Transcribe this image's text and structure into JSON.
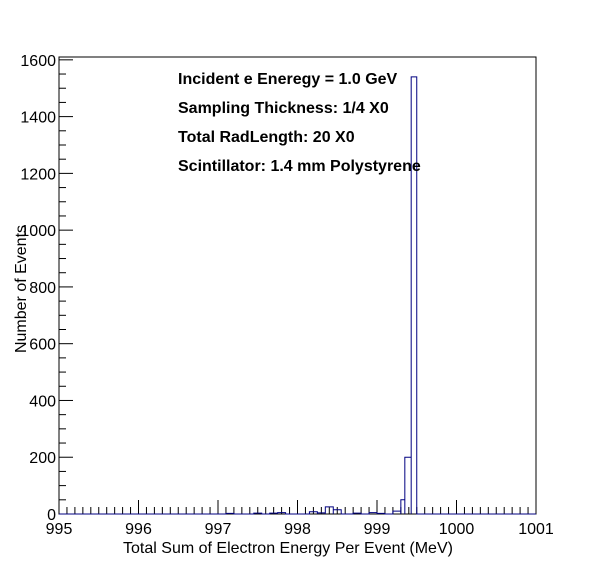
{
  "chart_data": {
    "type": "histogram",
    "title": "",
    "xlabel": "Total Sum of Electron Energy Per Event (MeV)",
    "ylabel": "Number of Events",
    "xlim": [
      995,
      1001
    ],
    "ylim": [
      0,
      1610
    ],
    "x_ticks": [
      "995",
      "996",
      "997",
      "998",
      "999",
      "1000",
      "1001"
    ],
    "y_ticks": [
      "0",
      "200",
      "400",
      "600",
      "800",
      "1000",
      "1200",
      "1400",
      "1600"
    ],
    "grid": false,
    "line_color": "#000080",
    "annotations": [
      "Incident e Eneregy = 1.0 GeV",
      "Sampling Thickness: 1/4 X0",
      "Total RadLength: 20 X0",
      "Scintillator: 1.4 mm Polystyrene"
    ],
    "bins": [
      {
        "x0": 997.1,
        "x1": 997.2,
        "count": 2
      },
      {
        "x0": 997.45,
        "x1": 997.55,
        "count": 3
      },
      {
        "x0": 997.65,
        "x1": 997.75,
        "count": 3
      },
      {
        "x0": 997.75,
        "x1": 997.85,
        "count": 5
      },
      {
        "x0": 998.15,
        "x1": 998.25,
        "count": 8
      },
      {
        "x0": 998.25,
        "x1": 998.35,
        "count": 4
      },
      {
        "x0": 998.35,
        "x1": 998.45,
        "count": 25
      },
      {
        "x0": 998.45,
        "x1": 998.55,
        "count": 15
      },
      {
        "x0": 998.7,
        "x1": 998.8,
        "count": 3
      },
      {
        "x0": 998.9,
        "x1": 999.0,
        "count": 5
      },
      {
        "x0": 999.0,
        "x1": 999.1,
        "count": 2
      },
      {
        "x0": 999.2,
        "x1": 999.3,
        "count": 10
      },
      {
        "x0": 999.3,
        "x1": 999.35,
        "count": 50
      },
      {
        "x0": 999.35,
        "x1": 999.43,
        "count": 200
      },
      {
        "x0": 999.43,
        "x1": 999.5,
        "count": 1540
      }
    ]
  }
}
